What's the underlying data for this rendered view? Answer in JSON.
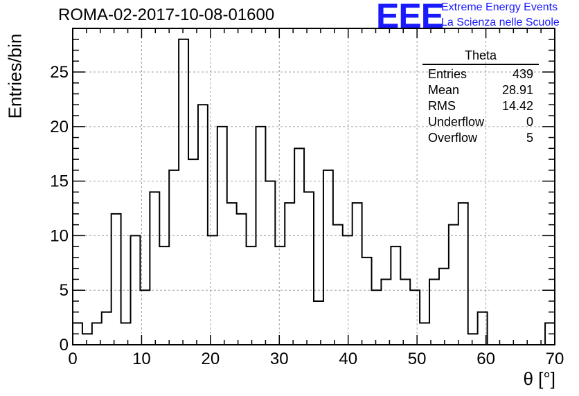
{
  "header": {
    "run_title": "ROMA-02-2017-10-08-01600",
    "logo_text": "EEE",
    "tagline_1": "Extreme Energy Events",
    "tagline_2": "La Scienza nelle Scuole",
    "logo_color": "#1a1aff"
  },
  "stats": {
    "title": "Theta",
    "rows": [
      {
        "label": "Entries",
        "value": "439"
      },
      {
        "label": "Mean",
        "value": "28.91"
      },
      {
        "label": "RMS",
        "value": "14.42"
      },
      {
        "label": "Underflow",
        "value": "0"
      },
      {
        "label": "Overflow",
        "value": "5"
      }
    ]
  },
  "chart_data": {
    "type": "histogram",
    "xlabel": "θ [°]",
    "ylabel": "Entries/bin",
    "xlim": [
      0,
      70
    ],
    "ylim": [
      0,
      29
    ],
    "bin_width": 1.4,
    "x_ticks": [
      0,
      10,
      20,
      30,
      40,
      50,
      60,
      70
    ],
    "y_ticks": [
      0,
      5,
      10,
      15,
      20,
      25
    ],
    "grid": true,
    "values": [
      2,
      1,
      2,
      3,
      12,
      2,
      10,
      5,
      14,
      9,
      16,
      28,
      17,
      22,
      10,
      20,
      13,
      12,
      9,
      20,
      15,
      9,
      13,
      18,
      14,
      4,
      16,
      11,
      10,
      13,
      8,
      5,
      6,
      9,
      6,
      5,
      2,
      6,
      7,
      11,
      13,
      1,
      3,
      0,
      0,
      0,
      0,
      0,
      0,
      2
    ]
  }
}
